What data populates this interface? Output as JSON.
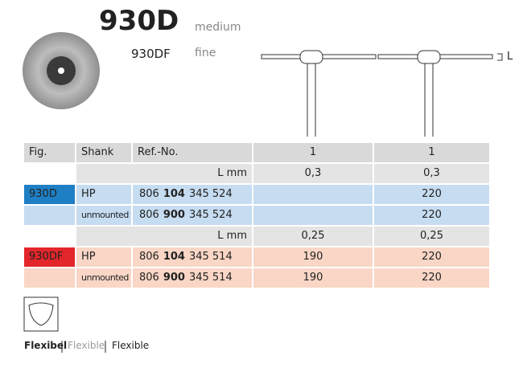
{
  "header": {
    "title": "930D",
    "title_note": "medium",
    "subtitle": "930DF",
    "subtitle_note": "fine"
  },
  "diagram_label": "L",
  "table": {
    "columns": [
      "Fig.",
      "Shank",
      "Ref.-No.",
      "1",
      "1"
    ],
    "rows": [
      {
        "label": "L mm",
        "c1": "0,3",
        "c2": "0,3",
        "color": "#e4e4e4"
      },
      {
        "fig": "930D",
        "fig_color": "#1f7fc4",
        "shank": "HP",
        "ref": {
          "a": "806",
          "b": "104",
          "c": "345 524"
        },
        "c2": "220",
        "color": "#c6dcf1"
      },
      {
        "shank": "unmounted",
        "ref": {
          "a": "806",
          "b": "900",
          "c": "345 524"
        },
        "c2": "220",
        "color": "#c6dcf1"
      },
      {
        "label": "L mm",
        "c1": "0,25",
        "c2": "0,25",
        "color": "#e4e4e4"
      },
      {
        "fig": "930DF",
        "fig_color": "#e3262b",
        "shank": "HP",
        "ref": {
          "a": "806",
          "b": "104",
          "c": "345 514"
        },
        "c1": "190",
        "c2": "220",
        "color": "#f9d6c6"
      },
      {
        "shank": "unmounted",
        "ref": {
          "a": "806",
          "b": "900",
          "c": "345 514"
        },
        "c1": "190",
        "c2": "220",
        "color": "#f9d6c6"
      }
    ]
  },
  "footer": [
    "Flexibel",
    "Flexible",
    "Flexible"
  ]
}
